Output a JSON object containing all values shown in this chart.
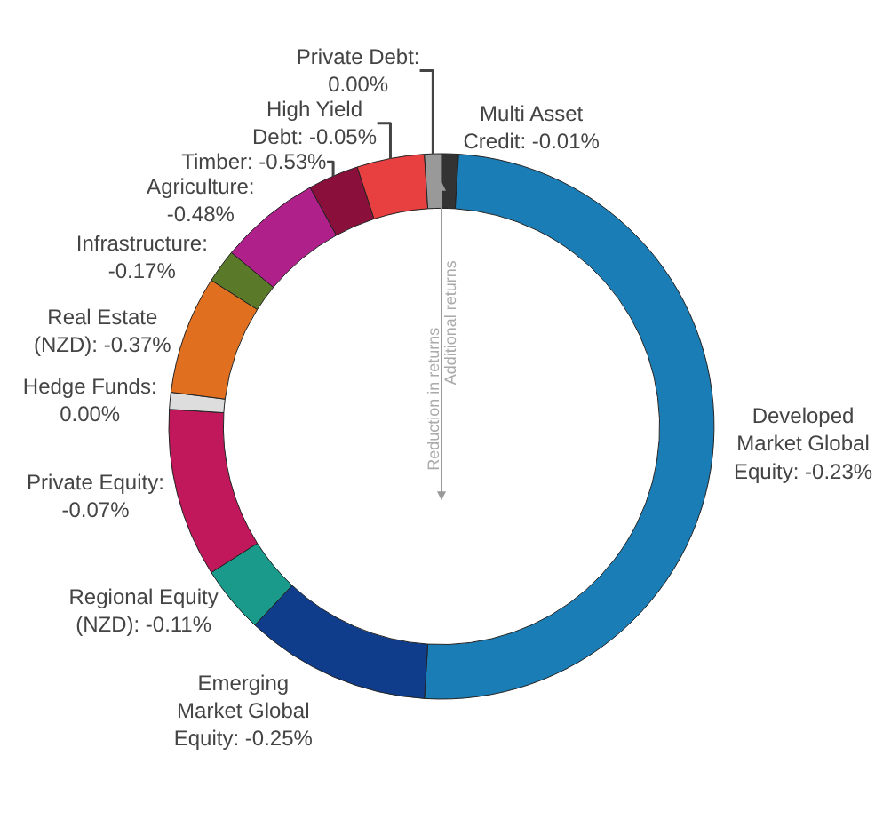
{
  "chart_data": {
    "type": "donut",
    "categories": [
      "Multi Asset\nCredit: -0.01%",
      "Developed\nMarket Global\nEquity: -0.23%",
      "Emerging\nMarket Global\nEquity: -0.25%",
      "Regional Equity\n(NZD): -0.11%",
      "Private Equity:\n-0.07%",
      "Hedge Funds:\n0.00%",
      "Real Estate\n(NZD): -0.37%",
      "Infrastructure:\n-0.17%",
      "Agriculture:\n-0.48%",
      "Timber: -0.53%",
      "High Yield\nDebt: -0.05%",
      "Private Debt:\n0.00%"
    ],
    "values": [
      1,
      50,
      11,
      4,
      10,
      1,
      7,
      2,
      6,
      3,
      4,
      1
    ],
    "colors": [
      "#333333",
      "#1a7db5",
      "#0f3d8c",
      "#1a9a8a",
      "#c0185a",
      "#dddddd",
      "#e07020",
      "#5a7a2a",
      "#b0208a",
      "#8a0f3a",
      "#e84040",
      "#999999"
    ],
    "annotations": [
      "Additional returns",
      "Reduction in returns"
    ],
    "legend": false
  }
}
